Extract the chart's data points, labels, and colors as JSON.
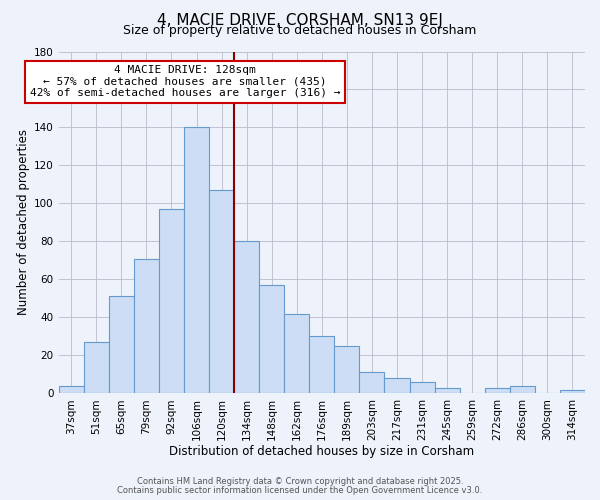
{
  "title": "4, MACIE DRIVE, CORSHAM, SN13 9EJ",
  "subtitle": "Size of property relative to detached houses in Corsham",
  "xlabel": "Distribution of detached houses by size in Corsham",
  "ylabel": "Number of detached properties",
  "footer_line1": "Contains HM Land Registry data © Crown copyright and database right 2025.",
  "footer_line2": "Contains public sector information licensed under the Open Government Licence v3.0.",
  "bar_labels": [
    "37sqm",
    "51sqm",
    "65sqm",
    "79sqm",
    "92sqm",
    "106sqm",
    "120sqm",
    "134sqm",
    "148sqm",
    "162sqm",
    "176sqm",
    "189sqm",
    "203sqm",
    "217sqm",
    "231sqm",
    "245sqm",
    "259sqm",
    "272sqm",
    "286sqm",
    "300sqm",
    "314sqm"
  ],
  "bar_values": [
    4,
    27,
    51,
    71,
    97,
    140,
    107,
    80,
    57,
    42,
    30,
    25,
    11,
    8,
    6,
    3,
    0,
    3,
    4,
    0,
    2
  ],
  "bar_color": "#ccddf5",
  "bar_edge_color": "#6699cc",
  "grid_color": "#bbbbcc",
  "background_color": "#eef2fa",
  "ylim": [
    0,
    180
  ],
  "yticks": [
    0,
    20,
    40,
    60,
    80,
    100,
    120,
    140,
    160,
    180
  ],
  "marker_bin_index": 6,
  "annotation_title": "4 MACIE DRIVE: 128sqm",
  "annotation_line2": "← 57% of detached houses are smaller (435)",
  "annotation_line3": "42% of semi-detached houses are larger (316) →",
  "annotation_box_color": "#ffffff",
  "annotation_box_edge_color": "#cc0000",
  "marker_line_color": "#880000",
  "title_fontsize": 11,
  "subtitle_fontsize": 9,
  "annotation_fontsize": 8,
  "xlabel_fontsize": 8.5,
  "ylabel_fontsize": 8.5,
  "tick_fontsize": 7.5,
  "footer_fontsize": 6
}
